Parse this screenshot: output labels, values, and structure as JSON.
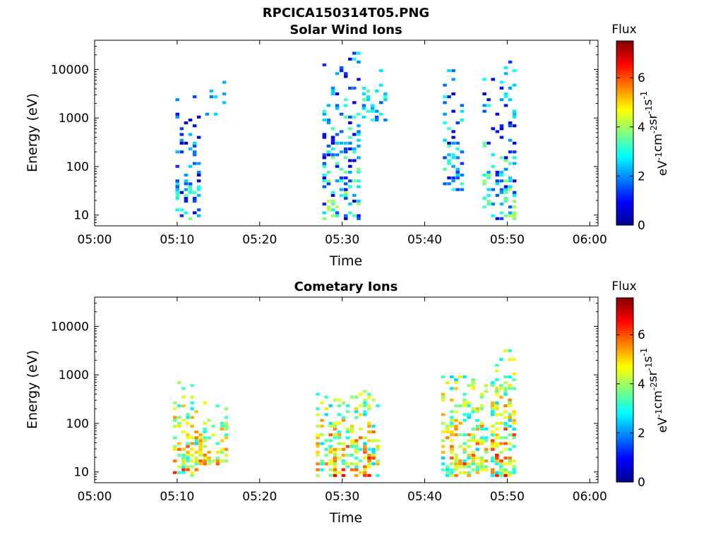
{
  "figure": {
    "title": "RPCICA150314T05.PNG"
  },
  "panels": {
    "solar": {
      "title": "Solar Wind Ions",
      "ylabel": "Energy (eV)",
      "xlabel": "Time"
    },
    "cometary": {
      "title": "Cometary Ions",
      "ylabel": "Energy (eV)",
      "xlabel": "Time"
    }
  },
  "x_ticks": [
    "05:00",
    "05:10",
    "05:20",
    "05:30",
    "05:40",
    "05:50",
    "06:00"
  ],
  "y_ticks": [
    "10",
    "100",
    "1000",
    "10000"
  ],
  "colorbar": {
    "title": "Flux",
    "ticks": [
      "0",
      "2",
      "4",
      "6"
    ],
    "range": [
      0,
      7.5
    ],
    "unit_base": [
      "eV",
      "cm",
      "sr",
      "s"
    ],
    "unit_exp": [
      "-1",
      "-2",
      "-1",
      "-1"
    ]
  },
  "chart_data": [
    {
      "type": "heatmap",
      "title": "Solar Wind Ions",
      "xlabel": "Time",
      "ylabel": "Energy (eV)",
      "xlim": [
        "05:00",
        "06:01"
      ],
      "ylim": [
        6,
        40000
      ],
      "yscale": "log",
      "colorbar_label": "Flux",
      "colormap": "jet",
      "clim": [
        0,
        7.5
      ],
      "grid": false,
      "clusters": [
        {
          "t": [
            9.8,
            12.6
          ],
          "e": [
            7,
            2600
          ],
          "flux": [
            0.5,
            3.8
          ]
        },
        {
          "t": [
            13.4,
            15.8
          ],
          "e": [
            1000,
            6000
          ],
          "flux": [
            1.5,
            3.0
          ]
        },
        {
          "t": [
            27.6,
            31.9
          ],
          "e": [
            7,
            22000
          ],
          "flux": [
            0.5,
            4.5
          ]
        },
        {
          "t": [
            32.4,
            35.2
          ],
          "e": [
            800,
            9000
          ],
          "flux": [
            1.5,
            4.0
          ]
        },
        {
          "t": [
            42.2,
            44.5
          ],
          "e": [
            30,
            9500
          ],
          "flux": [
            0.5,
            4.0
          ]
        },
        {
          "t": [
            47.0,
            51.0
          ],
          "e": [
            7,
            14000
          ],
          "flux": [
            0.5,
            4.5
          ]
        }
      ]
    },
    {
      "type": "heatmap",
      "title": "Cometary Ions",
      "xlabel": "Time",
      "ylabel": "Energy (eV)",
      "xlim": [
        "05:00",
        "06:01"
      ],
      "ylim": [
        6,
        40000
      ],
      "yscale": "log",
      "colorbar_label": "Flux",
      "colormap": "jet",
      "clim": [
        0,
        7.5
      ],
      "grid": false,
      "clusters": [
        {
          "t": [
            9.5,
            12.6
          ],
          "e": [
            7,
            700
          ],
          "flux": [
            2.5,
            6.5
          ]
        },
        {
          "t": [
            12.6,
            15.8
          ],
          "e": [
            12,
            300
          ],
          "flux": [
            3.0,
            6.0
          ]
        },
        {
          "t": [
            26.8,
            34.2
          ],
          "e": [
            7,
            450
          ],
          "flux": [
            2.5,
            6.8
          ]
        },
        {
          "t": [
            42.0,
            47.5
          ],
          "e": [
            7,
            900
          ],
          "flux": [
            2.5,
            6.5
          ]
        },
        {
          "t": [
            48.0,
            51.0
          ],
          "e": [
            7,
            3000
          ],
          "flux": [
            2.5,
            6.8
          ]
        }
      ]
    }
  ]
}
